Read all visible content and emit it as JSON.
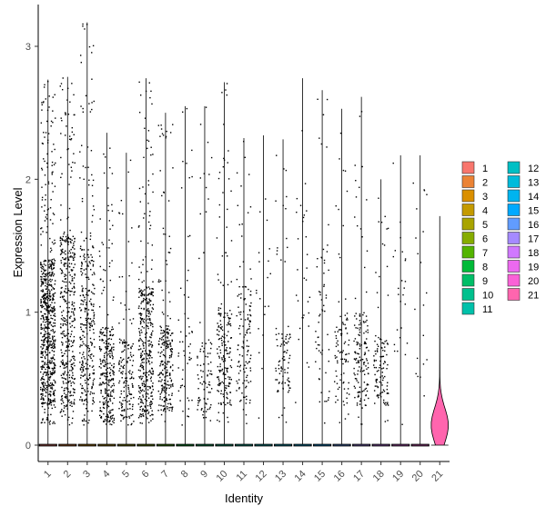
{
  "chart_data": {
    "type": "violin",
    "xlabel": "Identity",
    "ylabel": "Expression Level",
    "ylim": [
      -0.15,
      3.25
    ],
    "y_ticks": [
      0,
      1,
      2,
      3
    ],
    "categories": [
      "1",
      "2",
      "3",
      "4",
      "5",
      "6",
      "7",
      "8",
      "9",
      "10",
      "11",
      "12",
      "13",
      "14",
      "15",
      "16",
      "17",
      "18",
      "19",
      "20",
      "21"
    ],
    "max_values": [
      2.75,
      2.77,
      3.18,
      2.35,
      2.2,
      2.76,
      2.5,
      2.55,
      2.55,
      2.73,
      2.31,
      2.33,
      2.3,
      2.76,
      2.67,
      2.53,
      2.62,
      2.0,
      2.18,
      2.18,
      1.72
    ],
    "point_density": [
      700,
      430,
      320,
      290,
      160,
      380,
      240,
      55,
      90,
      200,
      130,
      20,
      90,
      30,
      60,
      90,
      150,
      110,
      25,
      20,
      0
    ],
    "dense_band": [
      [
        0.3,
        1.4
      ],
      [
        0.25,
        1.6
      ],
      [
        0.3,
        1.5
      ],
      [
        0.15,
        0.9
      ],
      [
        0.15,
        0.8
      ],
      [
        0.2,
        1.2
      ],
      [
        0.25,
        0.9
      ],
      [
        0.2,
        1.0
      ],
      [
        0.25,
        0.8
      ],
      [
        0.3,
        1.0
      ],
      [
        0.3,
        1.2
      ],
      [
        0.5,
        2.0
      ],
      [
        0.4,
        0.9
      ],
      [
        0.5,
        2.0
      ],
      [
        0.3,
        1.5
      ],
      [
        0.3,
        1.0
      ],
      [
        0.3,
        1.0
      ],
      [
        0.3,
        0.8
      ],
      [
        0.5,
        1.6
      ],
      [
        0.5,
        2.0
      ],
      [
        0.0,
        0.0
      ]
    ],
    "legend": {
      "position": "right",
      "columns": 2,
      "entries": [
        "1",
        "2",
        "3",
        "4",
        "5",
        "6",
        "7",
        "8",
        "9",
        "10",
        "11",
        "12",
        "13",
        "14",
        "15",
        "16",
        "17",
        "18",
        "19",
        "20",
        "21"
      ]
    },
    "colors": [
      "#F8766D",
      "#EB8335",
      "#DA8F00",
      "#C49A00",
      "#A9A400",
      "#86AC00",
      "#53B400",
      "#00BA38",
      "#00BE67",
      "#00C08D",
      "#00C1AA",
      "#00BFC4",
      "#00BBDB",
      "#00B4EF",
      "#00A9FF",
      "#619CFF",
      "#A58AFF",
      "#D078FF",
      "#EC69EF",
      "#FB61D7",
      "#FF65AE"
    ],
    "grid": false
  }
}
